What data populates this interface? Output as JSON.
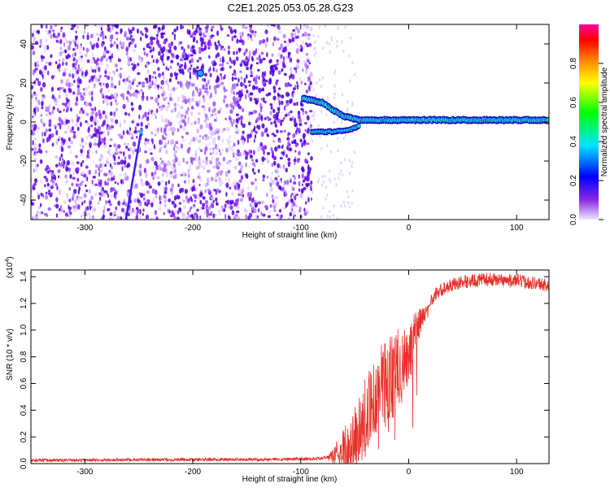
{
  "title": "C2E1.2025.053.05.28.G23",
  "chart_data": [
    {
      "type": "heatmap",
      "xlabel": "Height of straight line (km)",
      "ylabel": "Frequency (Hz)",
      "xlim": [
        -350,
        130
      ],
      "ylim": [
        -50,
        50
      ],
      "x_ticks": [
        "-300",
        "-200",
        "-100",
        "0",
        "100"
      ],
      "y_ticks": [
        "-40",
        "-20",
        "0",
        "20",
        "40"
      ],
      "colorbar": {
        "label": "Normalized spectral amplitude",
        "range": [
          0,
          1
        ],
        "ticks": [
          "0.0",
          "0.2",
          "0.4",
          "0.6",
          "0.8"
        ],
        "colors": [
          "#ffffff",
          "#6a00ff",
          "#0000ff",
          "#00e5ff",
          "#00ff00",
          "#ffff00",
          "#ff8000",
          "#ff0000",
          "#ff00ff"
        ]
      },
      "features": {
        "noise_region_x": [
          -350,
          -90
        ],
        "signal_start_x": -95,
        "carrier_frequency_hz": 0,
        "doppler_track": [
          [
            -98,
            12
          ],
          [
            -80,
            10
          ],
          [
            -70,
            6
          ],
          [
            -60,
            3
          ],
          [
            -45,
            1
          ],
          [
            -20,
            1
          ],
          [
            0,
            1
          ],
          [
            130,
            1
          ]
        ],
        "secondary_track": [
          [
            -90,
            -5
          ],
          [
            -70,
            -5
          ],
          [
            -55,
            -4
          ],
          [
            -45,
            -2
          ]
        ],
        "diagonal_line": [
          [
            -262,
            -50
          ],
          [
            -248,
            -5
          ]
        ],
        "spot": [
          -193,
          25
        ]
      }
    },
    {
      "type": "line",
      "xlabel": "Height of straight line (km)",
      "ylabel": "SNR (10 * v/v)",
      "y_multiplier": "(x10",
      "y_multiplier_exp": "4",
      "y_multiplier_close": ")",
      "xlim": [
        -350,
        130
      ],
      "ylim": [
        0,
        1.45
      ],
      "x_ticks": [
        "-300",
        "-200",
        "-100",
        "0",
        "100"
      ],
      "y_ticks": [
        "0.0",
        "0.2",
        "0.4",
        "0.6",
        "0.8",
        "1.0",
        "1.2",
        "1.4"
      ],
      "line_color": "#e8302a",
      "series": [
        {
          "x": [
            -350,
            -300,
            -250,
            -200,
            -150,
            -100,
            -90,
            -80,
            -70,
            -60,
            -50,
            -45,
            -40,
            -35,
            -30,
            -25,
            -20,
            -15,
            -10,
            -5,
            0,
            5,
            10,
            15,
            20,
            25,
            30,
            40,
            50,
            60,
            70,
            80,
            90,
            100,
            110,
            120,
            130
          ],
          "values": [
            0.025,
            0.025,
            0.028,
            0.03,
            0.03,
            0.035,
            0.035,
            0.04,
            0.06,
            0.1,
            0.18,
            0.25,
            0.32,
            0.45,
            0.5,
            0.58,
            0.62,
            0.65,
            0.72,
            0.75,
            0.8,
            0.95,
            1.05,
            1.12,
            1.2,
            1.27,
            1.3,
            1.34,
            1.36,
            1.37,
            1.38,
            1.38,
            1.37,
            1.37,
            1.36,
            1.35,
            1.33
          ]
        }
      ]
    }
  ]
}
